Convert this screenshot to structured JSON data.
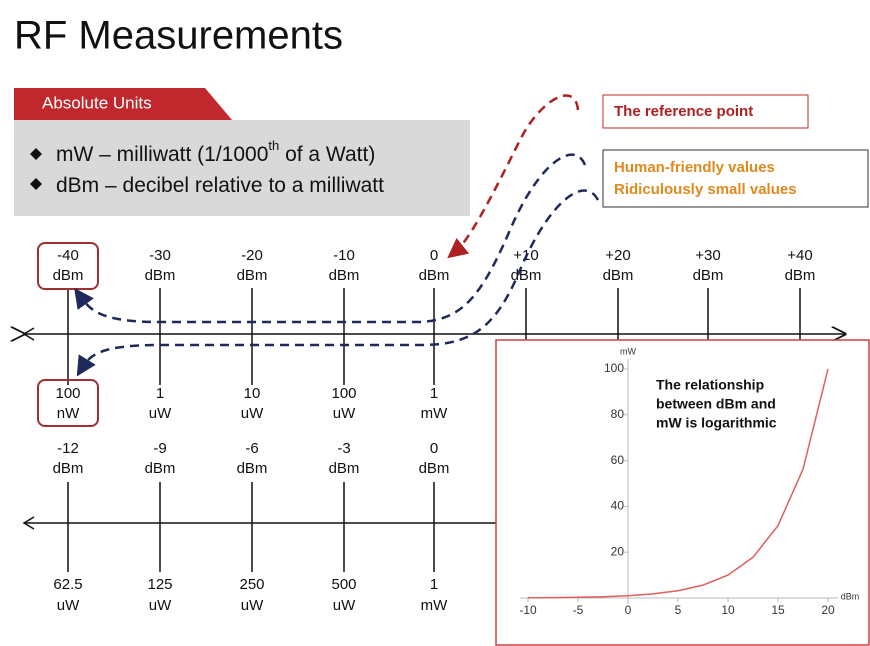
{
  "title": "RF Measurements",
  "banner": "Absolute Units",
  "bullets": [
    {
      "parts": [
        "mW – milliwatt (1/1000",
        "th",
        " of a Watt)"
      ]
    },
    {
      "parts": [
        "dBm – decibel relative to a milliwatt"
      ]
    }
  ],
  "callouts": {
    "reference": "The reference point",
    "human": "Human-friendly values",
    "small": "Ridiculously small values"
  },
  "scale_top": {
    "ticks": [
      {
        "dbm": "-40",
        "dbm_unit": "dBm",
        "mw": "100",
        "mw_unit": "nW"
      },
      {
        "dbm": "-30",
        "dbm_unit": "dBm",
        "mw": "1",
        "mw_unit": "uW"
      },
      {
        "dbm": "-20",
        "dbm_unit": "dBm",
        "mw": "10",
        "mw_unit": "uW"
      },
      {
        "dbm": "-10",
        "dbm_unit": "dBm",
        "mw": "100",
        "mw_unit": "uW"
      },
      {
        "dbm": "0",
        "dbm_unit": "dBm",
        "mw": "1",
        "mw_unit": "mW"
      },
      {
        "dbm": "+10",
        "dbm_unit": "dBm"
      },
      {
        "dbm": "+20",
        "dbm_unit": "dBm"
      },
      {
        "dbm": "+30",
        "dbm_unit": "dBm"
      },
      {
        "dbm": "+40",
        "dbm_unit": "dBm"
      }
    ]
  },
  "scale_bottom": {
    "ticks": [
      {
        "dbm": "-12",
        "dbm_unit": "dBm",
        "mw": "62.5",
        "mw_unit": "uW"
      },
      {
        "dbm": "-9",
        "dbm_unit": "dBm",
        "mw": "125",
        "mw_unit": "uW"
      },
      {
        "dbm": "-6",
        "dbm_unit": "dBm",
        "mw": "250",
        "mw_unit": "uW"
      },
      {
        "dbm": "-3",
        "dbm_unit": "dBm",
        "mw": "500",
        "mw_unit": "uW"
      },
      {
        "dbm": "0",
        "dbm_unit": "dBm",
        "mw": "1",
        "mw_unit": "mW"
      }
    ]
  },
  "chart_data": {
    "type": "line",
    "x_label": "dBm",
    "y_label": "mW",
    "annotation": [
      "The relationship",
      "between dBm and",
      "mW is logarithmic"
    ],
    "x": [
      -10,
      -7.5,
      -5,
      -2.5,
      0,
      2.5,
      5,
      7.5,
      10,
      12.5,
      15,
      17.5,
      20
    ],
    "values": [
      0.1,
      0.18,
      0.32,
      0.56,
      1,
      1.78,
      3.16,
      5.62,
      10,
      17.78,
      31.62,
      56.23,
      100
    ],
    "color": "#e06060",
    "xlim": [
      -10,
      20
    ],
    "ylim": [
      0,
      100
    ],
    "xticks": [
      -10,
      -5,
      0,
      5,
      10,
      15,
      20
    ],
    "yticks": [
      20,
      40,
      60,
      80,
      100
    ]
  }
}
